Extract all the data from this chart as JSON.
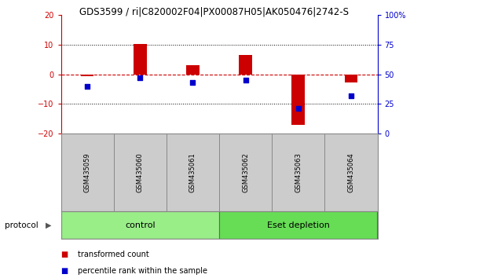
{
  "title": "GDS3599 / ri|C820002F04|PX00087H05|AK050476|2742-S",
  "categories": [
    "GSM435059",
    "GSM435060",
    "GSM435061",
    "GSM435062",
    "GSM435063",
    "GSM435064"
  ],
  "transformed_count": [
    -0.5,
    10.2,
    3.0,
    6.5,
    -17.0,
    -2.8
  ],
  "percentile_rank": [
    40,
    47,
    43,
    45,
    21,
    32
  ],
  "ylim_left": [
    -20,
    20
  ],
  "ylim_right": [
    0,
    100
  ],
  "yticks_left": [
    -20,
    -10,
    0,
    10,
    20
  ],
  "yticks_right": [
    0,
    25,
    50,
    75,
    100
  ],
  "ytick_labels_right": [
    "0",
    "25",
    "50",
    "75",
    "100%"
  ],
  "bar_color": "#cc0000",
  "dot_color": "#0000cc",
  "left_axis_color": "#cc0000",
  "right_axis_color": "#0000cc",
  "zero_line_color": "#cc0000",
  "grid_color": "#000000",
  "label_box_color": "#cccccc",
  "protocol_groups": [
    {
      "label": "control",
      "indices": [
        0,
        1,
        2
      ],
      "color": "#99ee88"
    },
    {
      "label": "Eset depletion",
      "indices": [
        3,
        4,
        5
      ],
      "color": "#66dd55"
    }
  ],
  "legend_items": [
    {
      "label": "transformed count",
      "color": "#cc0000"
    },
    {
      "label": "percentile rank within the sample",
      "color": "#0000cc"
    }
  ],
  "background_color": "#ffffff"
}
